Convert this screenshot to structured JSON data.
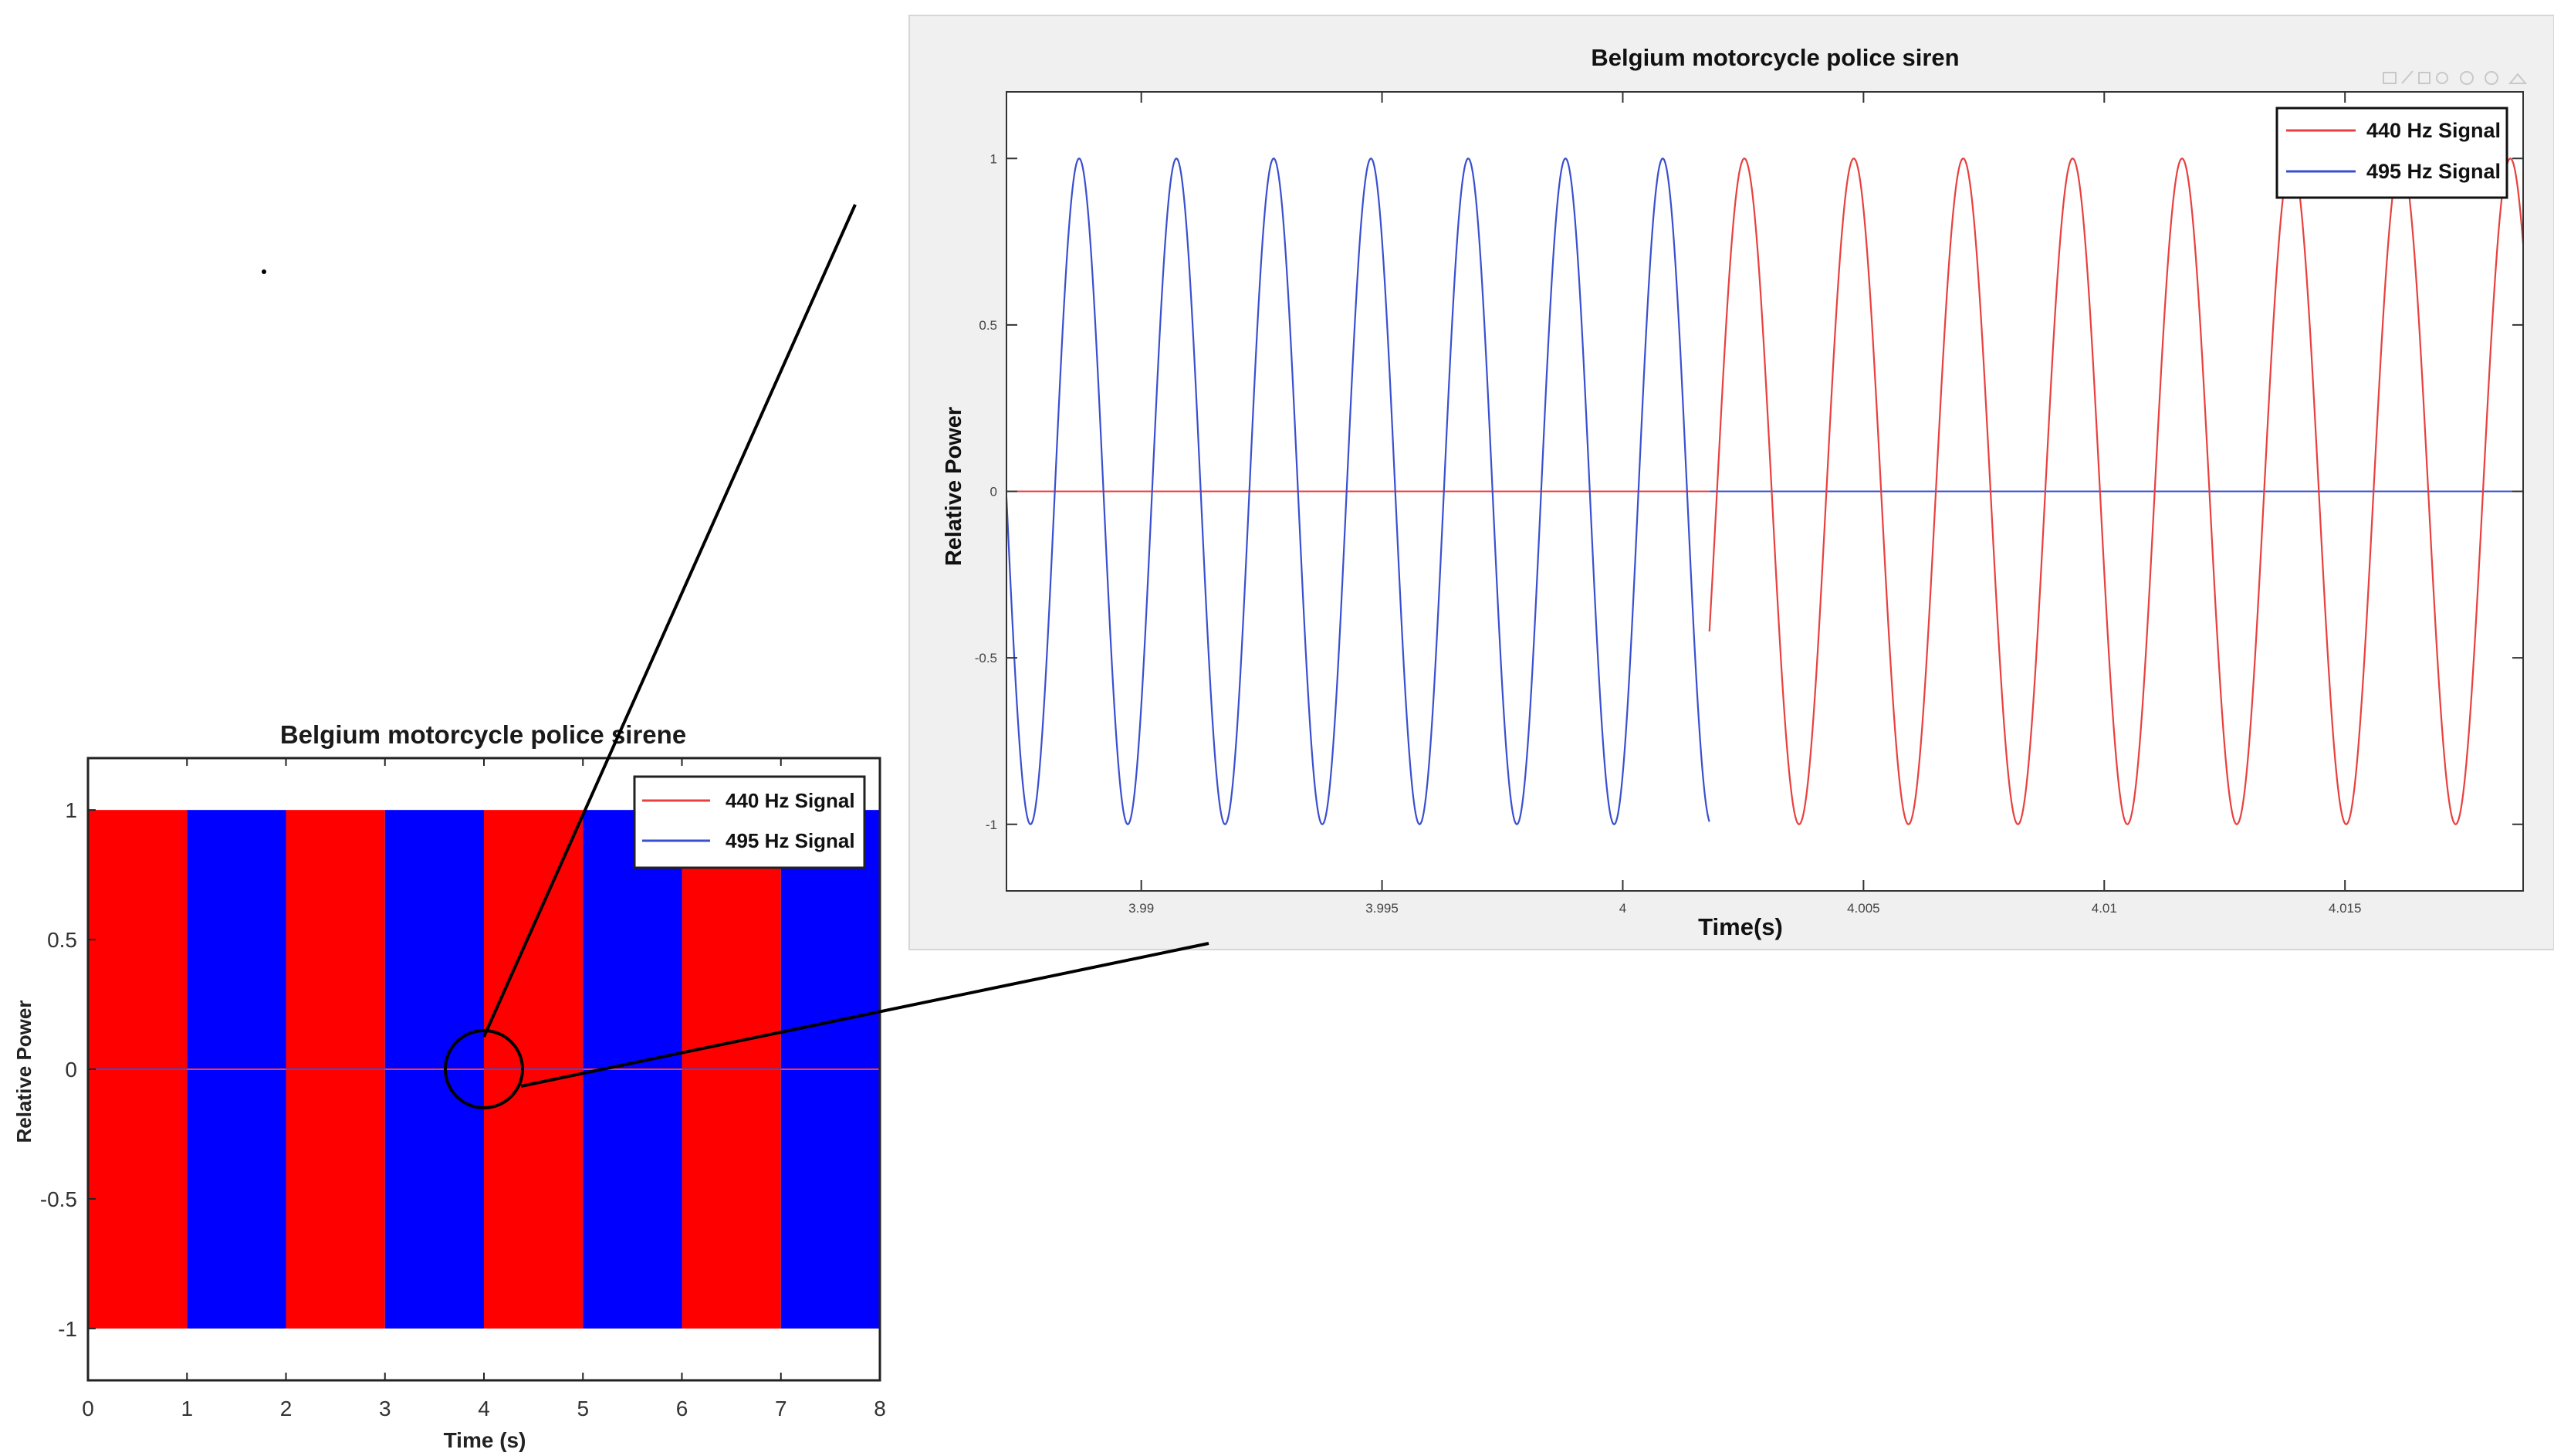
{
  "colors": {
    "red": "#ff0000",
    "blue": "#0000ff",
    "red_line": "#e8403e",
    "blue_line": "#3a4fcf",
    "zoom_panel_bg": "#f0f0f0"
  },
  "chart_data": [
    {
      "id": "overview",
      "type": "line",
      "title": "Belgium motorcycle police sirene",
      "xlabel": "Time (s)",
      "ylabel": "Relative Power",
      "xlim": [
        0,
        8
      ],
      "ylim": [
        -1.2,
        1.2
      ],
      "xticks": [
        0,
        1,
        2,
        3,
        4,
        5,
        6,
        7,
        8
      ],
      "yticks": [
        1,
        0.5,
        0,
        -0.5,
        -1
      ],
      "ytick_labels": [
        "1",
        "0.5",
        "0",
        "-0.5",
        "-1"
      ],
      "segments": [
        {
          "start": 0,
          "end": 1,
          "series": "440 Hz Signal"
        },
        {
          "start": 1,
          "end": 2,
          "series": "495 Hz Signal"
        },
        {
          "start": 2,
          "end": 3,
          "series": "440 Hz Signal"
        },
        {
          "start": 3,
          "end": 4,
          "series": "495 Hz Signal"
        },
        {
          "start": 4,
          "end": 5,
          "series": "440 Hz Signal"
        },
        {
          "start": 5,
          "end": 6,
          "series": "495 Hz Signal"
        },
        {
          "start": 6,
          "end": 7,
          "series": "440 Hz Signal"
        },
        {
          "start": 7,
          "end": 8,
          "series": "495 Hz Signal"
        }
      ],
      "series": [
        {
          "name": "440 Hz Signal",
          "frequency_hz": 440,
          "amplitude": 1
        },
        {
          "name": "495 Hz Signal",
          "frequency_hz": 495,
          "amplitude": 1
        }
      ],
      "legend": {
        "position": "top-right",
        "entries": [
          "440 Hz Signal",
          "495 Hz Signal"
        ]
      },
      "zoom_marker": {
        "x": 4,
        "y": 0
      }
    },
    {
      "id": "zoom",
      "type": "line",
      "title": "Belgium motorcycle police siren",
      "xlabel": "Time(s)",
      "ylabel": "Relative Power",
      "xlim": [
        3.9872,
        4.0187
      ],
      "ylim": [
        -1.2,
        1.2
      ],
      "xticks": [
        3.99,
        3.995,
        4,
        4.005,
        4.01,
        4.015
      ],
      "xtick_labels": [
        "3.99",
        "3.995",
        "4",
        "4.005",
        "4.01",
        "4.015"
      ],
      "yticks": [
        1,
        0.5,
        0,
        -0.5,
        -1
      ],
      "ytick_labels": [
        "1",
        "0.5",
        "0",
        "-0.5",
        "-1"
      ],
      "switch_time": 4.0018,
      "series": [
        {
          "name": "440 Hz Signal",
          "frequency_hz": 440,
          "amplitude": 1,
          "phase_deg": 50,
          "active_from": 4.0018
        },
        {
          "name": "495 Hz Signal",
          "frequency_hz": 495,
          "amplitude": 1,
          "phase_deg": -58,
          "active_until": 4.0018
        }
      ],
      "legend": {
        "position": "top-right",
        "entries": [
          "440 Hz Signal",
          "495 Hz Signal"
        ]
      }
    }
  ]
}
